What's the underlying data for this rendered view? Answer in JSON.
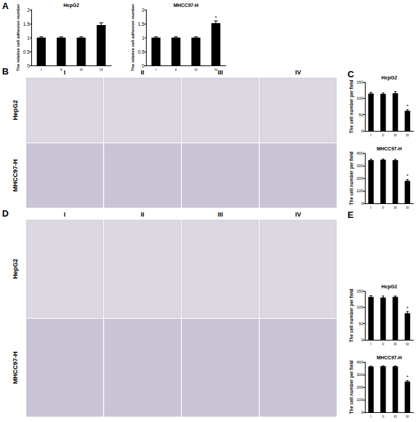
{
  "chart_data": [
    {
      "panel": "A",
      "type": "bar",
      "title": "HepG2",
      "ylabel": "The relative cell adhesion number",
      "categories": [
        "I",
        "II",
        "III",
        "IV"
      ],
      "values": [
        1,
        1,
        1,
        1.45
      ],
      "errors": [
        0.03,
        0.03,
        0.03,
        0.08
      ],
      "color": "#000000",
      "ylim": [
        0,
        2
      ],
      "yticks": [
        0,
        0.5,
        1,
        1.5,
        2
      ]
    },
    {
      "panel": "A",
      "type": "bar",
      "title": "MHCC97-H",
      "ylabel": "The relative cell adhesion number",
      "categories": [
        "I",
        "II",
        "III",
        "IV"
      ],
      "values": [
        1,
        1,
        1,
        1.52
      ],
      "errors": [
        0.03,
        0.03,
        0.03,
        0.08
      ],
      "annotations": [
        {
          "category": "IV",
          "text": "*"
        }
      ],
      "color": "#000000",
      "ylim": [
        0,
        2
      ],
      "yticks": [
        0,
        0.5,
        1,
        1.5,
        2
      ]
    },
    {
      "panel": "C",
      "type": "bar",
      "title": "HepG2",
      "ylabel": "The cell number per field",
      "categories": [
        "I",
        "II",
        "III",
        "IV"
      ],
      "values": [
        115,
        114,
        116,
        62
      ],
      "errors": [
        4,
        3,
        5,
        3
      ],
      "annotations": [
        {
          "category": "IV",
          "text": "*"
        }
      ],
      "color": "#000000",
      "ylim": [
        0,
        150
      ],
      "yticks": [
        0,
        50,
        100,
        150
      ]
    },
    {
      "panel": "C",
      "type": "bar",
      "title": "MHCC97-H",
      "ylabel": "The cell number per field",
      "categories": [
        "I",
        "II",
        "III",
        "IV"
      ],
      "values": [
        345,
        348,
        345,
        180
      ],
      "errors": [
        8,
        6,
        6,
        10
      ],
      "annotations": [
        {
          "category": "IV",
          "text": "*"
        }
      ],
      "color": "#000000",
      "ylim": [
        0,
        400
      ],
      "yticks": [
        0,
        100,
        200,
        300,
        400
      ]
    },
    {
      "panel": "E",
      "type": "bar",
      "title": "HepG2",
      "ylabel": "The cell number per field",
      "categories": [
        "I",
        "II",
        "III",
        "IV"
      ],
      "values": [
        132,
        130,
        132,
        82
      ],
      "errors": [
        4,
        5,
        3,
        5
      ],
      "annotations": [
        {
          "category": "IV",
          "text": "*"
        }
      ],
      "color": "#000000",
      "ylim": [
        0,
        150
      ],
      "yticks": [
        0,
        50,
        100,
        150
      ]
    },
    {
      "panel": "E",
      "type": "bar",
      "title": "MHCC97-H",
      "ylabel": "The cell number per field",
      "categories": [
        "I",
        "II",
        "III",
        "IV"
      ],
      "values": [
        365,
        367,
        366,
        245
      ],
      "errors": [
        3,
        3,
        3,
        8
      ],
      "annotations": [
        {
          "category": "IV",
          "text": "*"
        }
      ],
      "color": "#000000",
      "ylim": [
        0,
        400
      ],
      "yticks": [
        0,
        100,
        200,
        300,
        400
      ]
    }
  ],
  "image_panels": [
    {
      "panel": "B",
      "columns": [
        "I",
        "II",
        "III",
        "IV"
      ],
      "rows": [
        "HepG2",
        "MHCC97-H"
      ]
    },
    {
      "panel": "D",
      "columns": [
        "I",
        "II",
        "III",
        "IV"
      ],
      "rows": [
        "HepG2",
        "MHCC97-H"
      ]
    }
  ]
}
